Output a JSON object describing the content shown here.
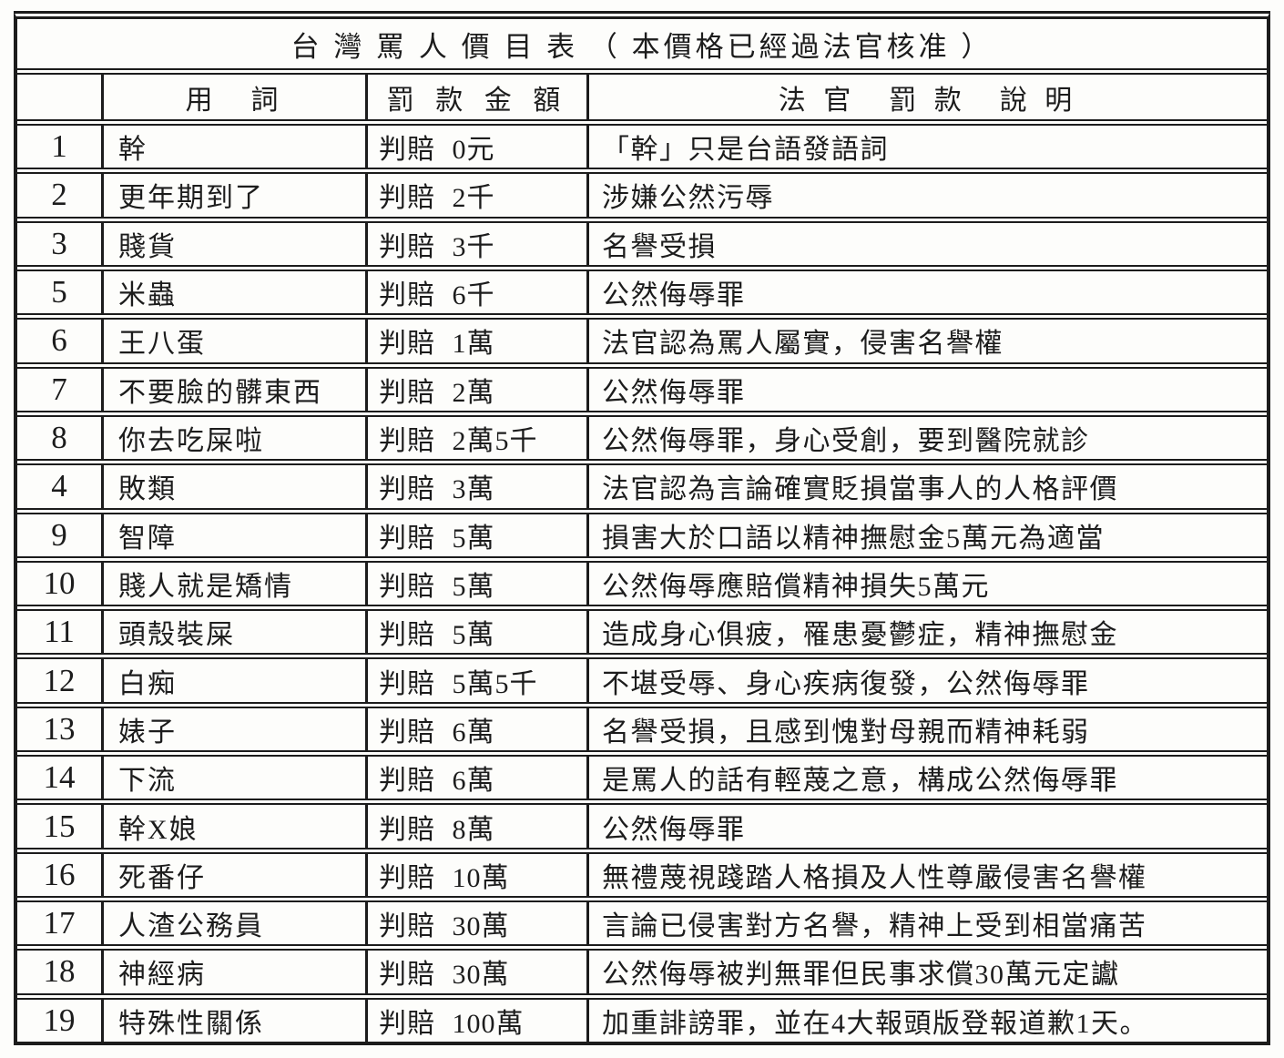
{
  "page": {
    "background": "#fdfdfb",
    "ink": "#1c1c1c"
  },
  "table": {
    "title": "台 灣 罵 人 價 目 表 （ 本價格已經過法官核准 ）",
    "columns": {
      "num": "",
      "term": "用　詞",
      "fine": "罰 款 金 額",
      "desc": "法 官　罰 款　說 明"
    },
    "rows": [
      {
        "num": "1",
        "term": "幹",
        "fine": "判賠 0元",
        "desc": "「幹」只是台語發語詞"
      },
      {
        "num": "2",
        "term": "更年期到了",
        "fine": "判賠 2千",
        "desc": "涉嫌公然污辱"
      },
      {
        "num": "3",
        "term": "賤貨",
        "fine": "判賠 3千",
        "desc": "名譽受損"
      },
      {
        "num": "5",
        "term": "米蟲",
        "fine": "判賠 6千",
        "desc": "公然侮辱罪"
      },
      {
        "num": "6",
        "term": "王八蛋",
        "fine": "判賠 1萬",
        "desc": "法官認為罵人屬實，侵害名譽權"
      },
      {
        "num": "7",
        "term": "不要臉的髒東西",
        "fine": "判賠 2萬",
        "desc": "公然侮辱罪"
      },
      {
        "num": "8",
        "term": "你去吃屎啦",
        "fine": "判賠 2萬5千",
        "desc": "公然侮辱罪，身心受創，要到醫院就診"
      },
      {
        "num": "4",
        "term": "敗類",
        "fine": "判賠 3萬",
        "desc": "法官認為言論確實貶損當事人的人格評價"
      },
      {
        "num": "9",
        "term": "智障",
        "fine": "判賠 5萬",
        "desc": "損害大於口語以精神撫慰金5萬元為適當"
      },
      {
        "num": "10",
        "term": "賤人就是矯情",
        "fine": "判賠 5萬",
        "desc": "公然侮辱應賠償精神損失5萬元"
      },
      {
        "num": "11",
        "term": "頭殼裝屎",
        "fine": "判賠 5萬",
        "desc": "造成身心俱疲，罹患憂鬱症，精神撫慰金"
      },
      {
        "num": "12",
        "term": "白痴",
        "fine": "判賠 5萬5千",
        "desc": "不堪受辱、身心疾病復發，公然侮辱罪"
      },
      {
        "num": "13",
        "term": "婊子",
        "fine": "判賠 6萬",
        "desc": "名譽受損，且感到愧對母親而精神耗弱"
      },
      {
        "num": "14",
        "term": "下流",
        "fine": "判賠 6萬",
        "desc": "是罵人的話有輕蔑之意，構成公然侮辱罪"
      },
      {
        "num": "15",
        "term": "幹X娘",
        "fine": "判賠 8萬",
        "desc": "公然侮辱罪"
      },
      {
        "num": "16",
        "term": "死番仔",
        "fine": "判賠 10萬",
        "desc": "無禮蔑視踐踏人格損及人性尊嚴侵害名譽權"
      },
      {
        "num": "17",
        "term": "人渣公務員",
        "fine": "判賠 30萬",
        "desc": "言論已侵害對方名譽，精神上受到相當痛苦"
      },
      {
        "num": "18",
        "term": "神經病",
        "fine": "判賠 30萬",
        "desc": "公然侮辱被判無罪但民事求償30萬元定讞"
      },
      {
        "num": "19",
        "term": "特殊性關係",
        "fine": "判賠 100萬",
        "desc": "加重誹謗罪，並在4大報頭版登報道歉1天。"
      }
    ]
  }
}
